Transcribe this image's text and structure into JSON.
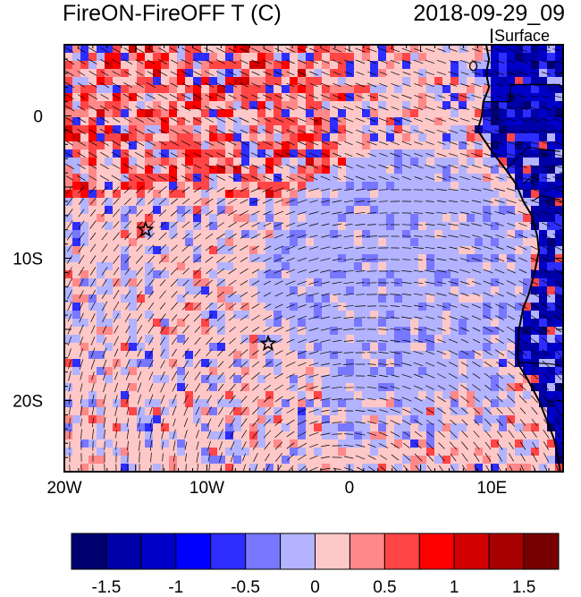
{
  "title": {
    "left": "FireON-FireOFF T (C)",
    "right": "2018-09-29_09",
    "level": "Surface"
  },
  "map": {
    "lon_range": [
      -20,
      15
    ],
    "lat_range": [
      -25,
      5
    ],
    "lon_ticks": [
      {
        "value": -20,
        "label": "20W"
      },
      {
        "value": -10,
        "label": "10W"
      },
      {
        "value": 0,
        "label": "0"
      },
      {
        "value": 10,
        "label": "10E"
      }
    ],
    "lat_ticks": [
      {
        "value": 0,
        "label": "0"
      },
      {
        "value": -10,
        "label": "10S"
      },
      {
        "value": -20,
        "label": "20S"
      }
    ],
    "markers": [
      {
        "name": "star",
        "lon": -14.3,
        "lat": -8.0
      },
      {
        "name": "star",
        "lon": -5.7,
        "lat": -16.0
      }
    ]
  },
  "colorbar": {
    "colors": [
      "#000070",
      "#0000a8",
      "#0000c8",
      "#0000ff",
      "#2d2dff",
      "#7777ff",
      "#b3b3ff",
      "#ffc8c8",
      "#ff8888",
      "#ff4545",
      "#ff0000",
      "#d20000",
      "#a80000",
      "#780000"
    ],
    "labels": [
      "-1.5",
      "-1",
      "-0.5",
      "0",
      "0.5",
      "1",
      "1.5"
    ],
    "label_positions": [
      1,
      3,
      5,
      7,
      9,
      11,
      13
    ]
  },
  "icons": [
    "star-icon"
  ]
}
